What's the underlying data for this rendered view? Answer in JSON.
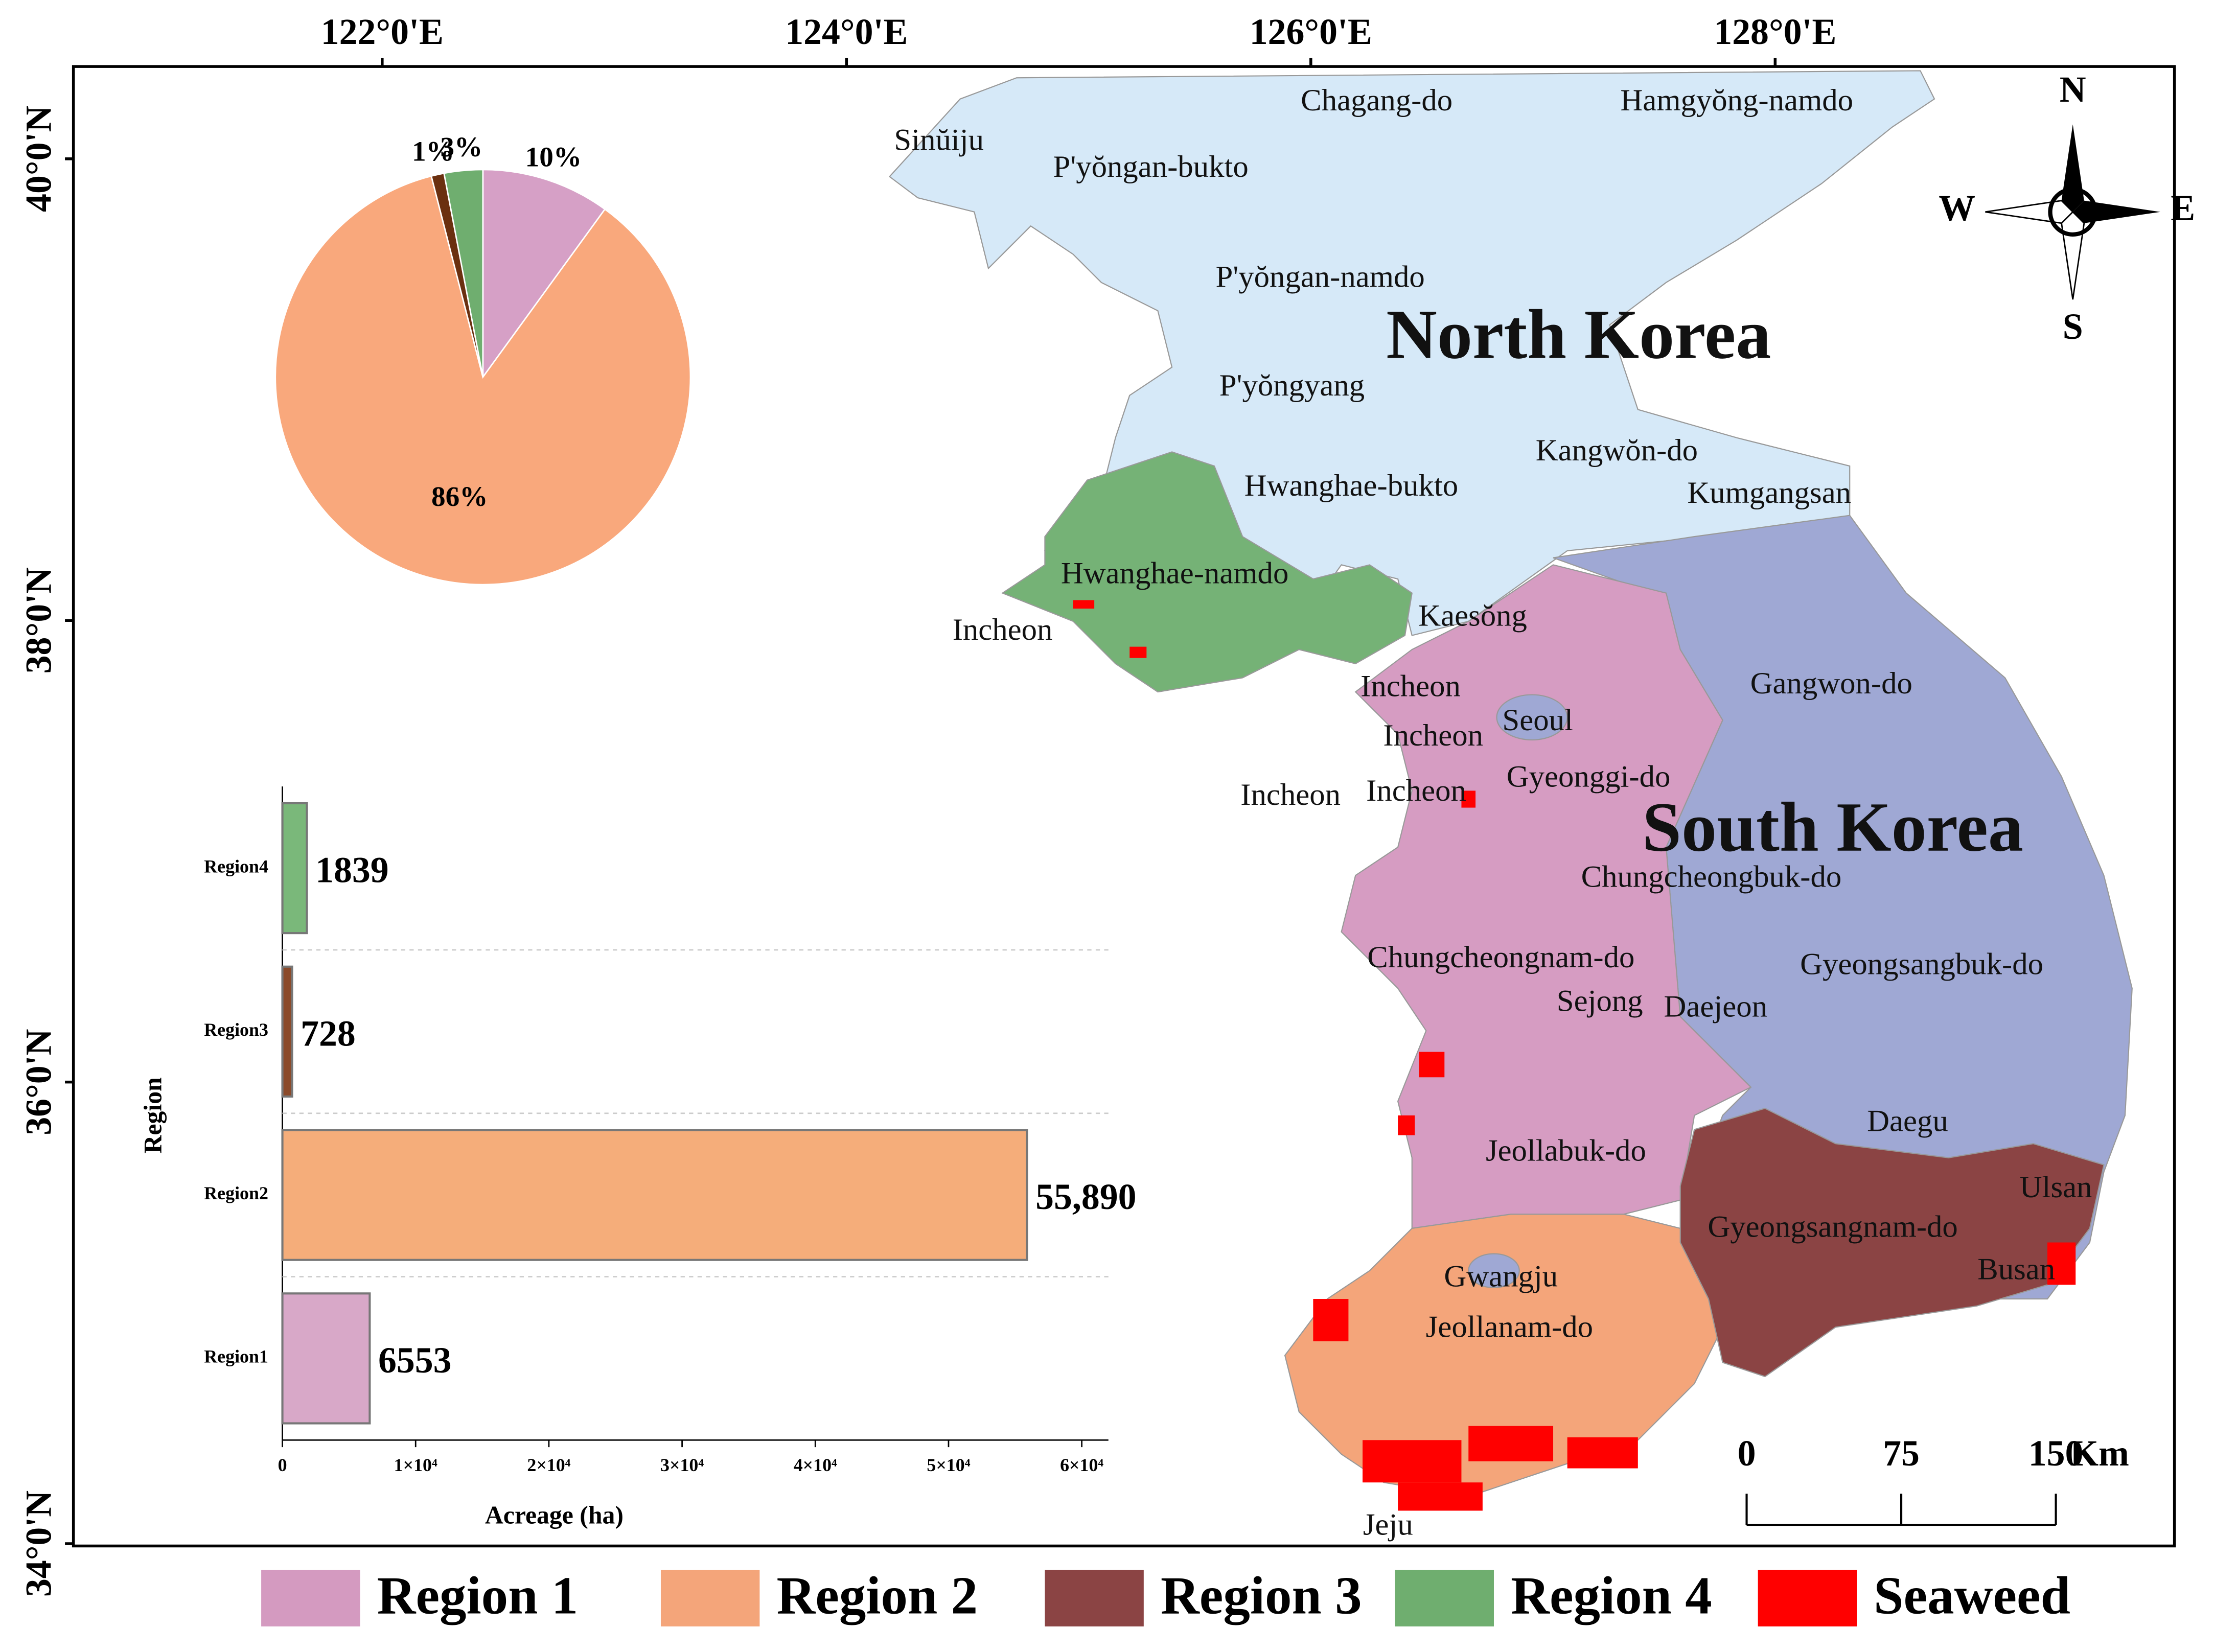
{
  "map": {
    "countries": [
      "North Korea",
      "South Korea"
    ],
    "places": [
      "Sinŭiju",
      "Chagang-do",
      "Hamgyŏng-namdo",
      "P'yŏngan-bukto",
      "P'yŏngan-namdo",
      "P'yŏngyang",
      "Kangwŏn-do",
      "Hwanghae-bukto",
      "Kumgangsan",
      "Hwanghae-namdo",
      "Incheon",
      "Kaesŏng",
      "Incheon",
      "Incheon",
      "Seoul",
      "Incheon",
      "Incheon",
      "Gyeonggi-do",
      "Gangwon-do",
      "Chungcheongbuk-do",
      "Chungcheongnam-do",
      "Gyeongsangbuk-do",
      "Sejong",
      "Daejeon",
      "Daegu",
      "Jeollabuk-do",
      "Ulsan",
      "Gyeongsangnam-do",
      "Busan",
      "Gwangju",
      "Jeollanam-do",
      "Jeju"
    ],
    "xlim": [
      120.67,
      129.72
    ],
    "ylim": [
      33.99,
      40.4
    ],
    "lon_ticks": [
      {
        "value": 122,
        "label": "122°0'E"
      },
      {
        "value": 124,
        "label": "124°0'E"
      },
      {
        "value": 126,
        "label": "126°0'E"
      },
      {
        "value": 128,
        "label": "128°0'E"
      }
    ],
    "lat_ticks": [
      {
        "value": 34,
        "label": "34°0'N"
      },
      {
        "value": 36,
        "label": "36°0'N"
      },
      {
        "value": 38,
        "label": "38°0'N"
      },
      {
        "value": 40,
        "label": "40°0'N"
      }
    ],
    "compass": {
      "north": "N",
      "south": "S",
      "west": "W",
      "east": "E"
    },
    "scale_bar": {
      "ticks": [
        0,
        75,
        150
      ],
      "unit": "Km"
    }
  },
  "chart_data": [
    {
      "type": "pie",
      "values": [
        10,
        86,
        1,
        3
      ],
      "value_labels": [
        "10%",
        "86%",
        "1%",
        "3%"
      ],
      "colors": [
        "#d6a0c6",
        "#f9a87c",
        "#6b3010",
        "#6fae6f"
      ]
    },
    {
      "type": "hbar",
      "y_label": "Region",
      "x_label": "Acreage (ha)",
      "categories": [
        "Region1",
        "Region2",
        "Region3",
        "Region4"
      ],
      "values": [
        6553,
        55890,
        728,
        1839
      ],
      "value_labels": [
        "6553",
        "55,890",
        "728",
        "1839"
      ],
      "colors": [
        "#d8a8c8",
        "#f5ad7a",
        "#8b4a2a",
        "#7ab87a"
      ],
      "xlim": [
        0,
        62000
      ],
      "xticks": [
        0,
        {
          "value": 10000,
          "label": "1×10⁴"
        },
        {
          "value": 20000,
          "label": "2×10⁴"
        },
        {
          "value": 30000,
          "label": "3×10⁴"
        },
        {
          "value": 40000,
          "label": "4×10⁴"
        },
        {
          "value": 50000,
          "label": "5×10⁴"
        },
        {
          "value": 60000,
          "label": "6×10⁴"
        }
      ]
    }
  ],
  "legend": [
    {
      "name": "Region 1",
      "color": "#d49ac0"
    },
    {
      "name": "Region 2",
      "color": "#f4a57a"
    },
    {
      "name": "Region 3",
      "color": "#8b4444"
    },
    {
      "name": "Region 4",
      "color": "#6fae6f"
    },
    {
      "name": "Seaweed",
      "color": "#ff0000"
    }
  ]
}
